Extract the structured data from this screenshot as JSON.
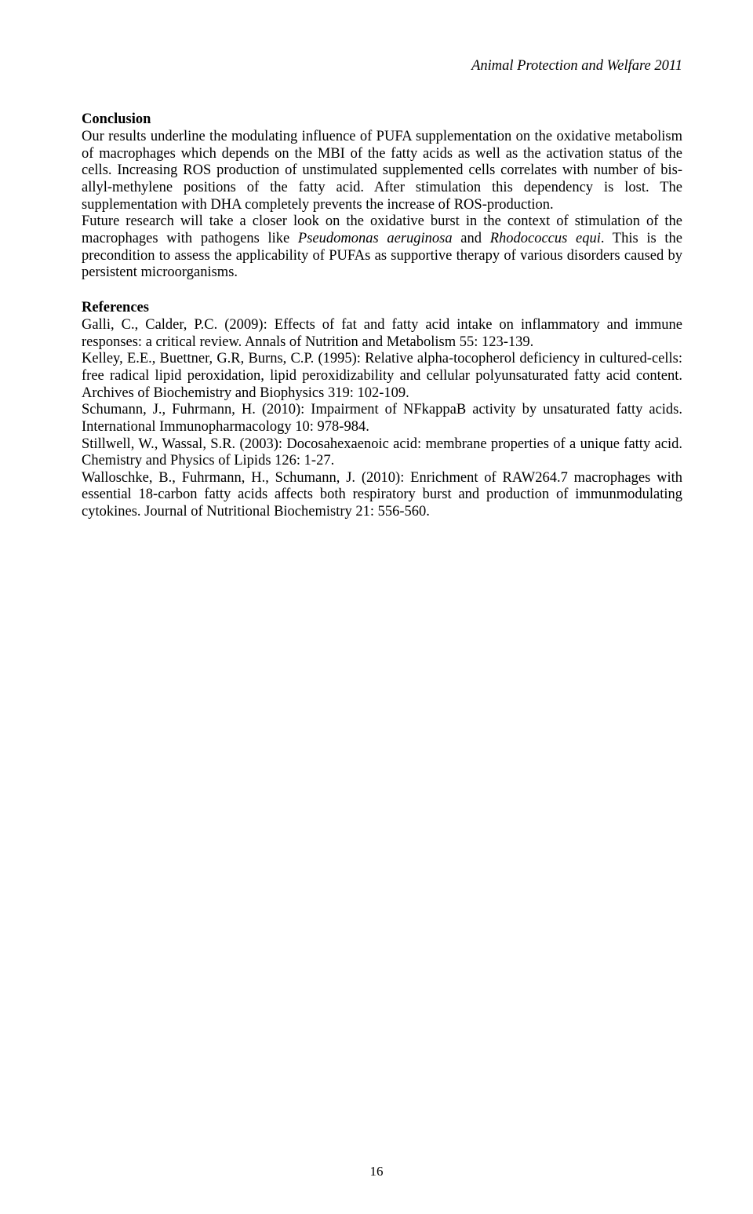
{
  "header": {
    "running_title": "Animal Protection and Welfare 2011"
  },
  "conclusion": {
    "heading": "Conclusion",
    "para1_a": "Our results underline the modulating influence of PUFA supplementation on the oxidative metabolism of macrophages which depends on the MBI of the fatty acids as well as the activation status of the cells. Increasing ROS production of unstimulated supplemented cells correlates with number of bis-allyl-methylene positions of the fatty acid. After stimulation this dependency is lost. The supplementation with DHA completely prevents the increase of ROS-production.",
    "para2_a": "Future research will take a closer look on the oxidative burst in the context of stimulation of the macrophages with pathogens like ",
    "para2_b": "Pseudomonas aeruginosa",
    "para2_c": " and ",
    "para2_d": "Rhodococcus equi",
    "para2_e": ". This is the precondition to assess the applicability of PUFAs as supportive therapy of various disorders caused by persistent microorganisms."
  },
  "references": {
    "heading": "References",
    "ref1": "Galli, C., Calder, P.C. (2009): Effects of fat and fatty acid intake on inflammatory and immune responses: a critical review. Annals of Nutrition and Metabolism 55: 123-139.",
    "ref2": "Kelley, E.E., Buettner, G.R, Burns, C.P. (1995): Relative alpha-tocopherol deficiency in cultured-cells: free radical lipid peroxidation, lipid peroxidizability and cellular polyunsaturated fatty acid content. Archives of Biochemistry and Biophysics 319: 102-109.",
    "ref3": "Schumann, J., Fuhrmann, H. (2010): Impairment of NFkappaB activity by unsaturated fatty acids. International Immunopharmacology 10: 978-984.",
    "ref4": "Stillwell, W., Wassal, S.R. (2003): Docosahexaenoic acid: membrane properties of a unique fatty acid. Chemistry and Physics of Lipids 126: 1-27.",
    "ref5": "Walloschke, B., Fuhrmann, H., Schumann, J. (2010): Enrichment of RAW264.7 macrophages with essential 18-carbon fatty acids affects both respiratory burst and production of immunmodulating cytokines. Journal of Nutritional Biochemistry 21: 556-560."
  },
  "footer": {
    "page_number": "16"
  }
}
